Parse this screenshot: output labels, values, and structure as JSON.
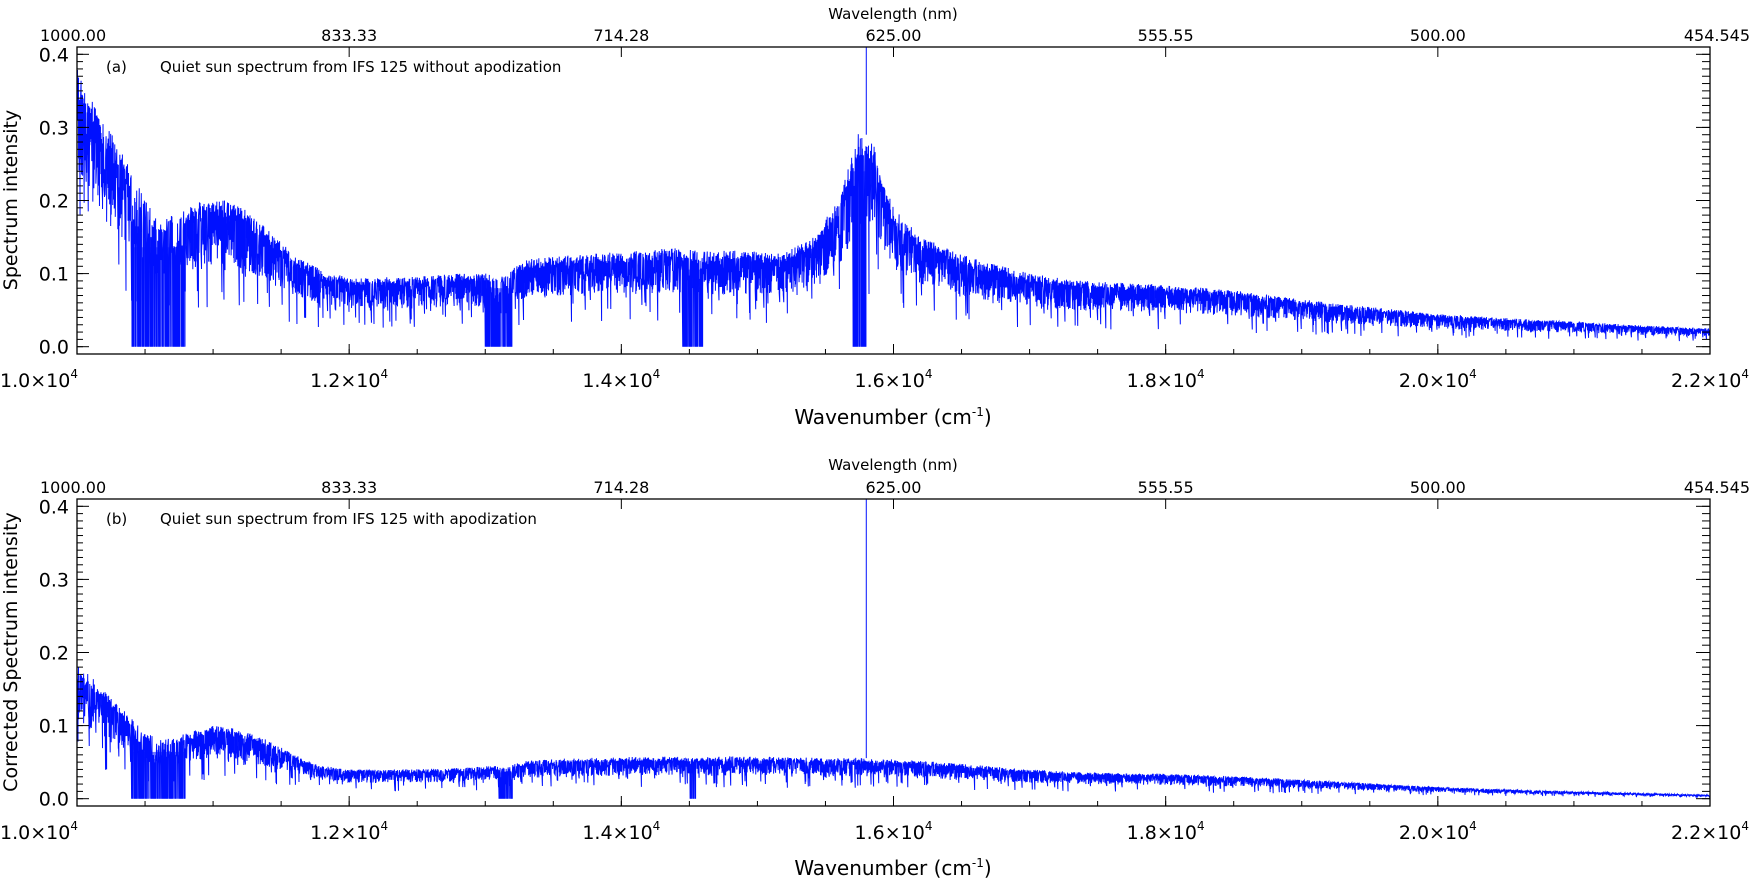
{
  "chart_data": [
    {
      "type": "line",
      "panel_label": "(a)",
      "annotation": "Quiet sun spectrum from IFS 125 without apodization",
      "xlabel": "Wavenumber (cm",
      "xlabel_sup": "-1",
      "xlabel_end": ")",
      "x2label": "Wavelength (nm)",
      "ylabel": "Spectrum intensity",
      "xlim": [
        10000,
        22000
      ],
      "ylim": [
        -0.01,
        0.41
      ],
      "xticks": [
        {
          "value": 10000,
          "mant": "1.0",
          "exp": "4"
        },
        {
          "value": 12000,
          "mant": "1.2",
          "exp": "4"
        },
        {
          "value": 14000,
          "mant": "1.4",
          "exp": "4"
        },
        {
          "value": 16000,
          "mant": "1.6",
          "exp": "4"
        },
        {
          "value": 18000,
          "mant": "1.8",
          "exp": "4"
        },
        {
          "value": 20000,
          "mant": "2.0",
          "exp": "4"
        },
        {
          "value": 22000,
          "mant": "2.2",
          "exp": "4"
        }
      ],
      "x2ticks": [
        {
          "value": 10000,
          "label": "1000.00"
        },
        {
          "value": 12000,
          "label": "833.33"
        },
        {
          "value": 14000,
          "label": "714.28"
        },
        {
          "value": 16000,
          "label": "625.00"
        },
        {
          "value": 18000,
          "label": "555.55"
        },
        {
          "value": 20000,
          "label": "500.00"
        },
        {
          "value": 22000,
          "label": "454.545"
        }
      ],
      "yticks": [
        {
          "value": 0.0,
          "label": "0.0"
        },
        {
          "value": 0.1,
          "label": "0.1"
        },
        {
          "value": 0.2,
          "label": "0.2"
        },
        {
          "value": 0.3,
          "label": "0.3"
        },
        {
          "value": 0.4,
          "label": "0.4"
        }
      ],
      "series_color": "#0010ff",
      "envelope": {
        "x": [
          10000,
          10200,
          10400,
          10600,
          10800,
          11000,
          11200,
          11400,
          11600,
          11800,
          12000,
          12400,
          12800,
          13050,
          13150,
          13300,
          13600,
          14000,
          14400,
          14600,
          14800,
          15200,
          15400,
          15600,
          15750,
          15850,
          16000,
          16200,
          16600,
          17000,
          17400,
          18000,
          18600,
          19200,
          20000,
          20600,
          21000,
          21400,
          22000
        ],
        "y": [
          0.38,
          0.31,
          0.24,
          0.17,
          0.19,
          0.205,
          0.195,
          0.16,
          0.125,
          0.105,
          0.095,
          0.095,
          0.1,
          0.1,
          0.1,
          0.12,
          0.125,
          0.13,
          0.135,
          0.13,
          0.132,
          0.128,
          0.15,
          0.2,
          0.3,
          0.28,
          0.19,
          0.15,
          0.12,
          0.1,
          0.09,
          0.085,
          0.075,
          0.06,
          0.045,
          0.038,
          0.035,
          0.03,
          0.025
        ]
      },
      "absorption_bands": [
        {
          "x": [
            10400,
            10800
          ],
          "y_min": 0.0
        },
        {
          "x": [
            13000,
            13200
          ],
          "y_min": 0.0
        },
        {
          "x": [
            14450,
            14600
          ],
          "y_min": 0.0
        },
        {
          "x": [
            15700,
            15800
          ],
          "y_min": 0.0
        }
      ],
      "emission_peak": {
        "x": 15800,
        "y": 0.41
      }
    },
    {
      "type": "line",
      "panel_label": "(b)",
      "annotation": "Quiet sun spectrum from IFS 125 with apodization",
      "xlabel": "Wavenumber (cm",
      "xlabel_sup": "-1",
      "xlabel_end": ")",
      "x2label": "Wavelength (nm)",
      "ylabel": "Corrected Spectrum intensity",
      "xlim": [
        10000,
        22000
      ],
      "ylim": [
        -0.01,
        0.41
      ],
      "xticks": [
        {
          "value": 10000,
          "mant": "1.0",
          "exp": "4"
        },
        {
          "value": 12000,
          "mant": "1.2",
          "exp": "4"
        },
        {
          "value": 14000,
          "mant": "1.4",
          "exp": "4"
        },
        {
          "value": 16000,
          "mant": "1.6",
          "exp": "4"
        },
        {
          "value": 18000,
          "mant": "1.8",
          "exp": "4"
        },
        {
          "value": 20000,
          "mant": "2.0",
          "exp": "4"
        },
        {
          "value": 22000,
          "mant": "2.2",
          "exp": "4"
        }
      ],
      "x2ticks": [
        {
          "value": 10000,
          "label": "1000.00"
        },
        {
          "value": 12000,
          "label": "833.33"
        },
        {
          "value": 14000,
          "label": "714.28"
        },
        {
          "value": 16000,
          "label": "625.00"
        },
        {
          "value": 18000,
          "label": "555.55"
        },
        {
          "value": 20000,
          "label": "500.00"
        },
        {
          "value": 22000,
          "label": "454.545"
        }
      ],
      "yticks": [
        {
          "value": 0.0,
          "label": "0.0"
        },
        {
          "value": 0.1,
          "label": "0.1"
        },
        {
          "value": 0.2,
          "label": "0.2"
        },
        {
          "value": 0.3,
          "label": "0.3"
        },
        {
          "value": 0.4,
          "label": "0.4"
        }
      ],
      "series_color": "#0010ff",
      "envelope": {
        "x": [
          10000,
          10200,
          10400,
          10600,
          10800,
          11000,
          11200,
          11400,
          11600,
          11800,
          12000,
          12400,
          12800,
          13050,
          13150,
          13300,
          13600,
          14000,
          14400,
          14600,
          14800,
          15200,
          15400,
          15600,
          15750,
          15850,
          16000,
          16200,
          16600,
          17000,
          17400,
          18000,
          18600,
          19200,
          20000,
          20600,
          21000,
          21400,
          22000
        ],
        "y": [
          0.185,
          0.15,
          0.11,
          0.08,
          0.09,
          0.1,
          0.095,
          0.08,
          0.06,
          0.045,
          0.04,
          0.04,
          0.042,
          0.045,
          0.045,
          0.052,
          0.055,
          0.057,
          0.058,
          0.057,
          0.058,
          0.057,
          0.056,
          0.056,
          0.056,
          0.055,
          0.054,
          0.052,
          0.046,
          0.04,
          0.036,
          0.034,
          0.03,
          0.024,
          0.016,
          0.012,
          0.01,
          0.008,
          0.005
        ]
      },
      "absorption_bands": [
        {
          "x": [
            10400,
            10800
          ],
          "y_min": 0.0
        },
        {
          "x": [
            13100,
            13200
          ],
          "y_min": 0.0
        },
        {
          "x": [
            14500,
            14550
          ],
          "y_min": 0.0
        }
      ],
      "emission_peak": {
        "x": 15800,
        "y": 0.41
      }
    }
  ]
}
